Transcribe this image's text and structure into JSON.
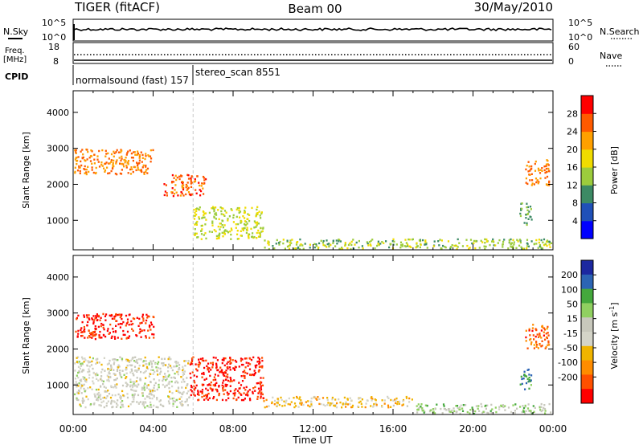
{
  "header": {
    "station": "TIGER (fitACF)",
    "beam": "Beam 00",
    "date": "30/May/2010"
  },
  "nsky_panel": {
    "left_label": "N.Sky",
    "left_ticks": [
      "10^5",
      "10^0"
    ],
    "right_label": "N.Search",
    "right_ticks": [
      "10^5",
      "10^0"
    ]
  },
  "freq_panel": {
    "left_label_line1": "Freq.",
    "left_label_line2": "[MHz]",
    "left_ticks": [
      "18",
      "8"
    ],
    "right_label": "Nave",
    "right_ticks": [
      "60",
      "0"
    ]
  },
  "cpid_panel": {
    "label": "CPID",
    "segments": [
      {
        "text": "normalsound (fast) 157",
        "start_hour": 0
      },
      {
        "text": "stereo_scan 8551",
        "start_hour": 6
      }
    ]
  },
  "colors": {
    "power_scale": [
      "#0000ff",
      "#2050b8",
      "#3c8a64",
      "#9ccc3c",
      "#f0dc00",
      "#ffa000",
      "#ff5a00",
      "#ff0000"
    ],
    "velocity_scale": [
      "#1c28a0",
      "#2c64b4",
      "#44a83c",
      "#90d060",
      "#c8c8bc",
      "#d4d4c8",
      "#f0b400",
      "#ff8c00",
      "#ff5000",
      "#ff0000"
    ],
    "marker_line": "#c8c8c8"
  },
  "chart_data": [
    {
      "type": "heatmap",
      "title": "",
      "xlabel": "",
      "ylabel": "Slant Range [km]",
      "xlim": [
        "00:00",
        "00:00"
      ],
      "ylim": [
        180,
        4600
      ],
      "x_ticks": [
        "00:00",
        "04:00",
        "08:00",
        "12:00",
        "16:00",
        "20:00",
        "00:00"
      ],
      "y_ticks": [
        "1000",
        "2000",
        "3000",
        "4000"
      ],
      "colorbar": {
        "label": "Power [dB]",
        "ticks": [
          "4",
          "8",
          "12",
          "16",
          "20",
          "24",
          "28"
        ],
        "range": [
          0,
          32
        ]
      },
      "features": [
        {
          "t_start": 0.0,
          "t_end": 4.0,
          "range_start": 2300,
          "range_end": 3000,
          "value": 24
        },
        {
          "t_start": 4.5,
          "t_end": 6.6,
          "range_start": 1700,
          "range_end": 2300,
          "value": 26
        },
        {
          "t_start": 6.0,
          "t_end": 9.5,
          "range_start": 500,
          "range_end": 1400,
          "value": 16
        },
        {
          "t_start": 9.5,
          "t_end": 24.0,
          "range_start": 200,
          "range_end": 500,
          "value": 14
        },
        {
          "t_start": 22.6,
          "t_end": 23.8,
          "range_start": 2000,
          "range_end": 2700,
          "value": 24
        },
        {
          "t_start": 22.3,
          "t_end": 22.9,
          "range_start": 900,
          "range_end": 1500,
          "value": 12
        }
      ]
    },
    {
      "type": "heatmap",
      "title": "",
      "xlabel": "Time UT",
      "ylabel": "Slant Range [km]",
      "xlim": [
        "00:00",
        "00:00"
      ],
      "ylim": [
        180,
        4600
      ],
      "x_ticks": [
        "00:00",
        "04:00",
        "08:00",
        "12:00",
        "16:00",
        "20:00",
        "00:00"
      ],
      "y_ticks": [
        "1000",
        "2000",
        "3000",
        "4000"
      ],
      "colorbar": {
        "label": "Velocity [m s^-1]",
        "label_main": "Velocity [m s",
        "label_exp": "-1",
        "label_close": "]",
        "ticks": [
          "200",
          "100",
          "50",
          "15",
          "-15",
          "-50",
          "-100",
          "-200"
        ],
        "range": [
          -250,
          250
        ]
      },
      "features": [
        {
          "t_start": 0.0,
          "t_end": 4.0,
          "range_start": 2300,
          "range_end": 3000,
          "value": -220
        },
        {
          "t_start": 0.0,
          "t_end": 5.8,
          "range_start": 400,
          "range_end": 1800,
          "value": 0
        },
        {
          "t_start": 5.8,
          "t_end": 9.5,
          "range_start": 600,
          "range_end": 1800,
          "value": -220
        },
        {
          "t_start": 9.5,
          "t_end": 17.0,
          "range_start": 400,
          "range_end": 700,
          "value": -60
        },
        {
          "t_start": 17.0,
          "t_end": 24.0,
          "range_start": 200,
          "range_end": 500,
          "value": 60
        },
        {
          "t_start": 22.6,
          "t_end": 23.8,
          "range_start": 2000,
          "range_end": 2700,
          "value": -150
        },
        {
          "t_start": 22.3,
          "t_end": 22.9,
          "range_start": 900,
          "range_end": 1500,
          "value": 150
        }
      ]
    }
  ]
}
